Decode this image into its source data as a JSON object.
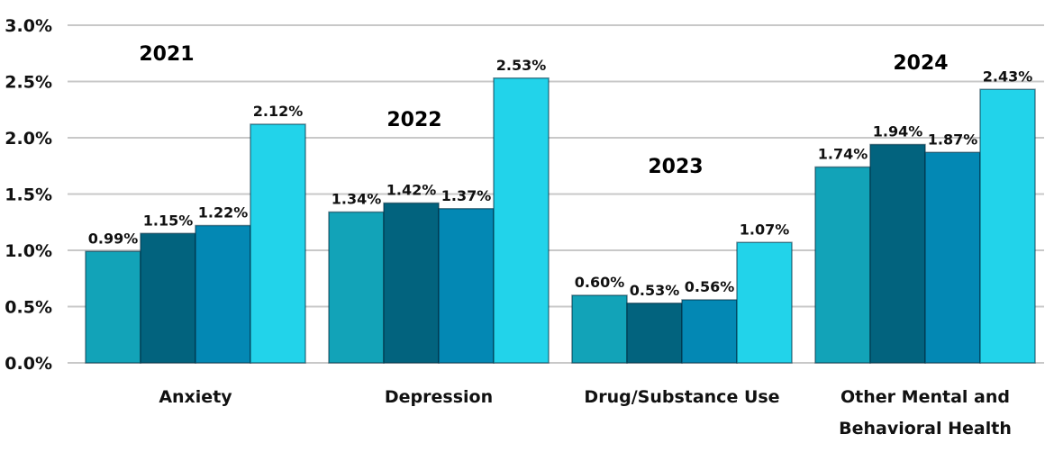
{
  "chart_data": {
    "type": "bar",
    "categories": [
      "Anxiety",
      "Depression",
      "Drug/Substance Use",
      "Other Mental and Behavioral Health"
    ],
    "category_label_lines": [
      [
        "Anxiety"
      ],
      [
        "Depression"
      ],
      [
        "Drug/Substance Use"
      ],
      [
        "Other Mental and",
        "Behavioral Health"
      ]
    ],
    "series": [
      {
        "values": [
          0.99,
          1.34,
          0.6,
          1.74
        ],
        "color": "#12A3B8"
      },
      {
        "values": [
          1.15,
          1.42,
          0.53,
          1.94
        ],
        "color": "#02637E"
      },
      {
        "values": [
          1.22,
          1.37,
          0.56,
          1.87
        ],
        "color": "#0388B4"
      },
      {
        "values": [
          2.12,
          2.53,
          1.07,
          2.43
        ],
        "color": "#22D3EA"
      }
    ],
    "data_labels": [
      [
        "0.99%",
        "1.15%",
        "1.22%",
        "2.12%"
      ],
      [
        "1.34%",
        "1.42%",
        "1.37%",
        "2.53%"
      ],
      [
        "0.60%",
        "0.53%",
        "0.56%",
        "1.07%"
      ],
      [
        "1.74%",
        "1.94%",
        "1.87%",
        "2.43%"
      ]
    ],
    "group_annotations": [
      "2021",
      "2022",
      "2023",
      "2024"
    ],
    "y_ticks": [
      "0.0%",
      "0.5%",
      "1.0%",
      "1.5%",
      "2.0%",
      "2.5%",
      "3.0%"
    ],
    "ylim": [
      0,
      3.0
    ],
    "y_unit": "%",
    "grid": true,
    "legend": "none"
  }
}
